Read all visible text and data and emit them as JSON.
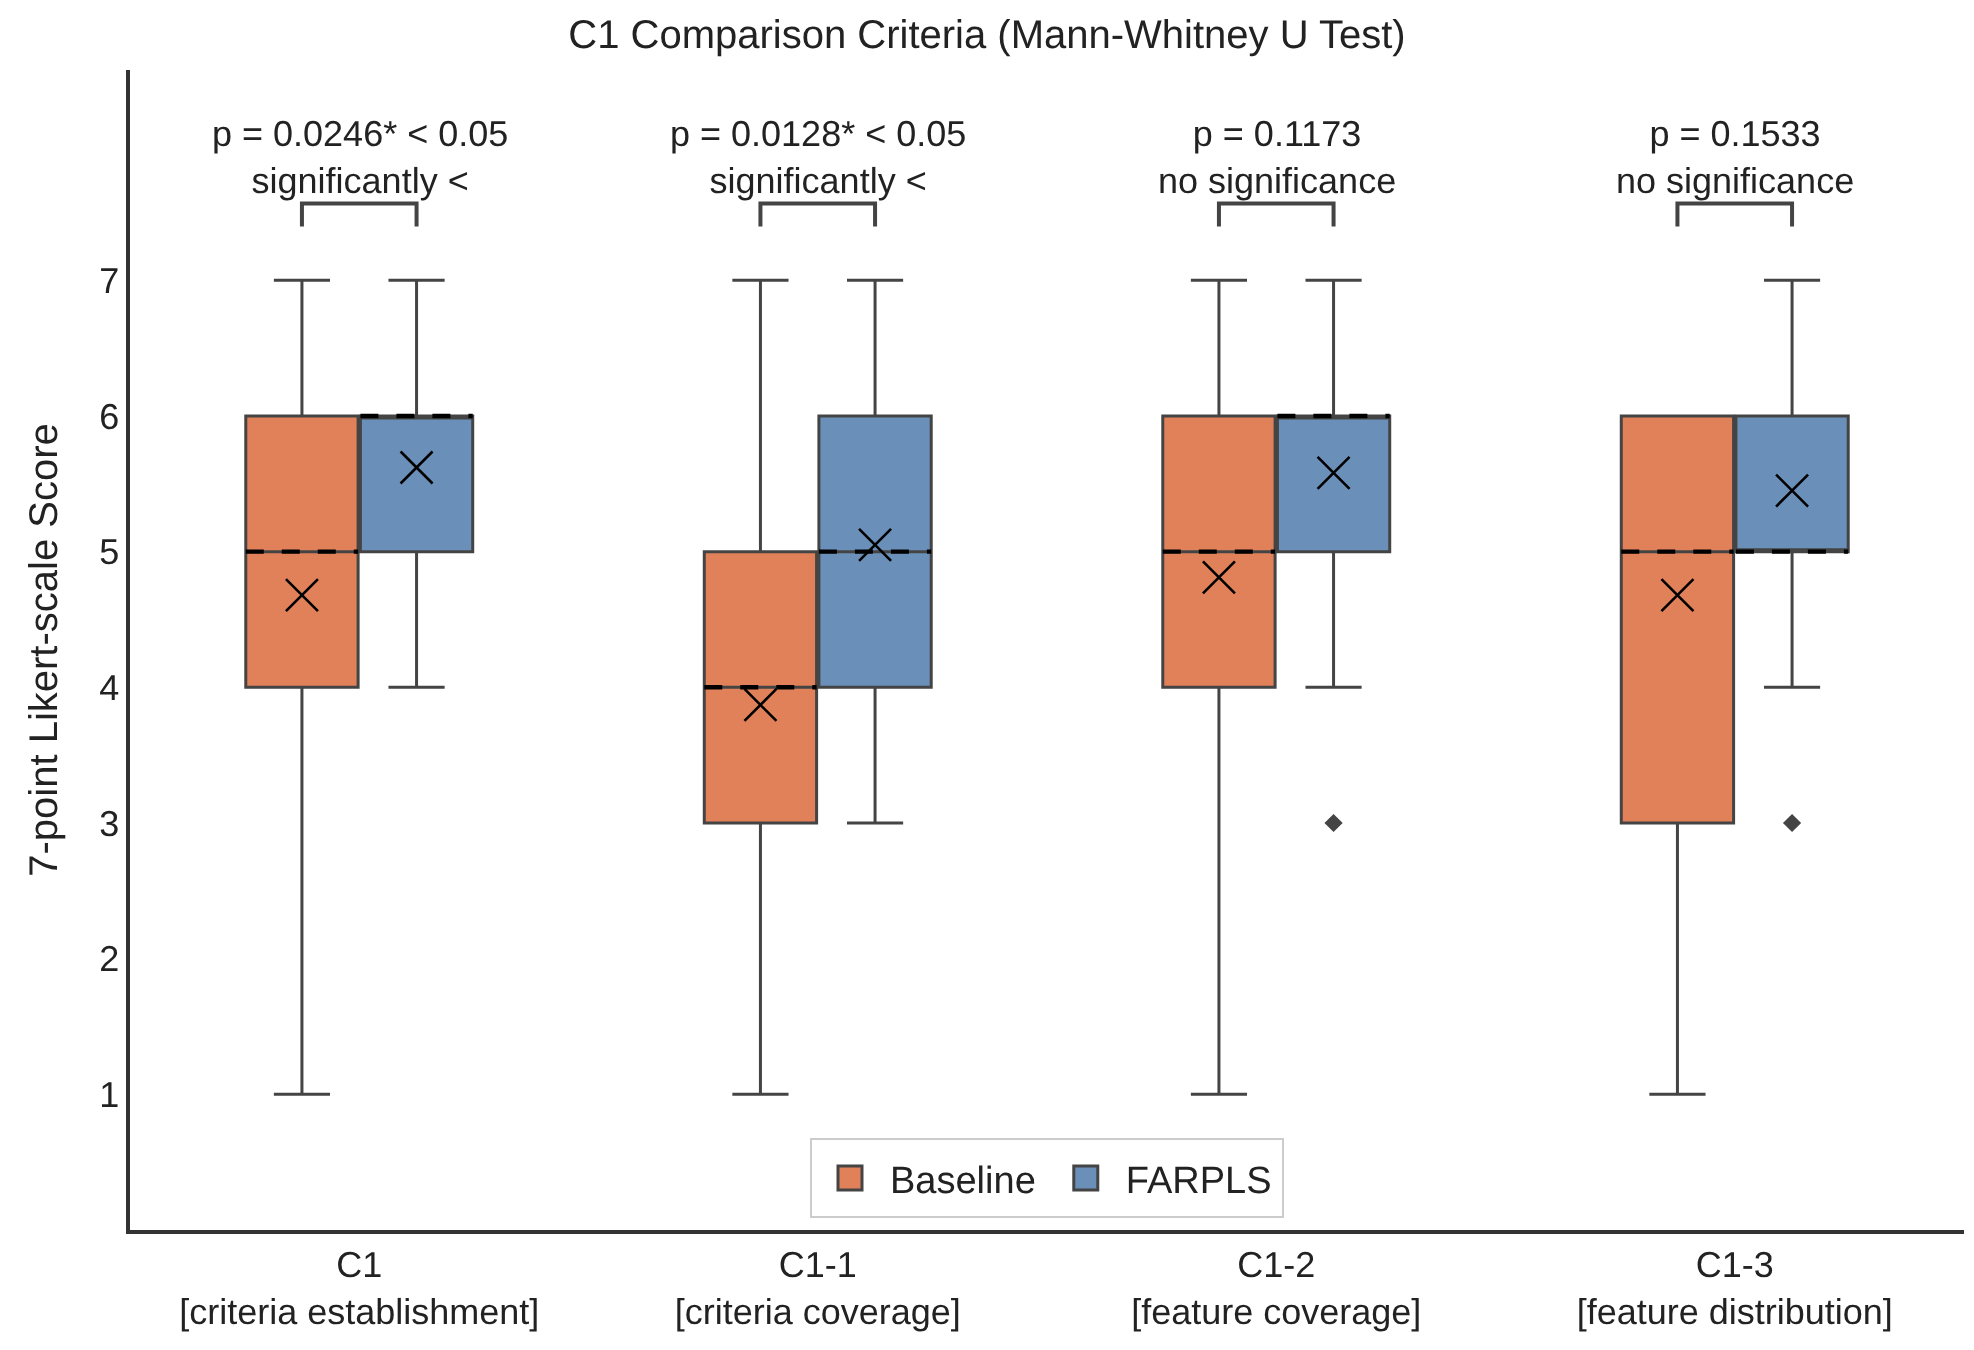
{
  "chart_data": {
    "type": "box",
    "title": "C1 Comparison Criteria (Mann-Whitney U Test)",
    "ylabel": "7-point Likert-scale Score",
    "categories": [
      "C1\n[criteria establishment]",
      "C1-1\n[criteria coverage]",
      "C1-2\n[feature coverage]",
      "C1-3\n[feature distribution]"
    ],
    "series": [
      {
        "name": "Baseline",
        "color": "#e1815a",
        "boxes": [
          {
            "low": 1,
            "q1": 4,
            "median": 5,
            "q3": 6,
            "high": 7,
            "mean": 4.68
          },
          {
            "low": 1,
            "q1": 3,
            "median": 4,
            "q3": 5,
            "high": 7,
            "mean": 3.87
          },
          {
            "low": 1,
            "q1": 4,
            "median": 5,
            "q3": 6,
            "high": 7,
            "mean": 4.81
          },
          {
            "low": 1,
            "q1": 3,
            "median": 5,
            "q3": 6,
            "high": 6,
            "mean": 4.68
          }
        ]
      },
      {
        "name": "FARPLS",
        "color": "#6a8fb8",
        "boxes": [
          {
            "low": 4,
            "q1": 5,
            "median": 6,
            "q3": 6,
            "high": 7,
            "mean": 5.62
          },
          {
            "low": 3,
            "q1": 4,
            "median": 5,
            "q3": 6,
            "high": 7,
            "mean": 5.05
          },
          {
            "low": 4,
            "q1": 5,
            "median": 6,
            "q3": 6,
            "high": 7,
            "mean": 5.58,
            "outliers": [
              3
            ]
          },
          {
            "low": 4,
            "q1": 5,
            "median": 5,
            "q3": 6,
            "high": 7,
            "mean": 5.45,
            "outliers": [
              3
            ]
          }
        ]
      }
    ],
    "annotations": [
      "p = 0.0246* < 0.05\nsignificantly <",
      "p = 0.0128* < 0.05\nsignificantly <",
      "p = 0.1173\nno significance",
      "p = 0.1533\nno significance"
    ],
    "ylim": [
      0,
      8.55
    ],
    "yticks": [
      1,
      2,
      3,
      4,
      5,
      6,
      7
    ],
    "legend": "bottom",
    "marker": "cross",
    "line_style": "dashed"
  }
}
